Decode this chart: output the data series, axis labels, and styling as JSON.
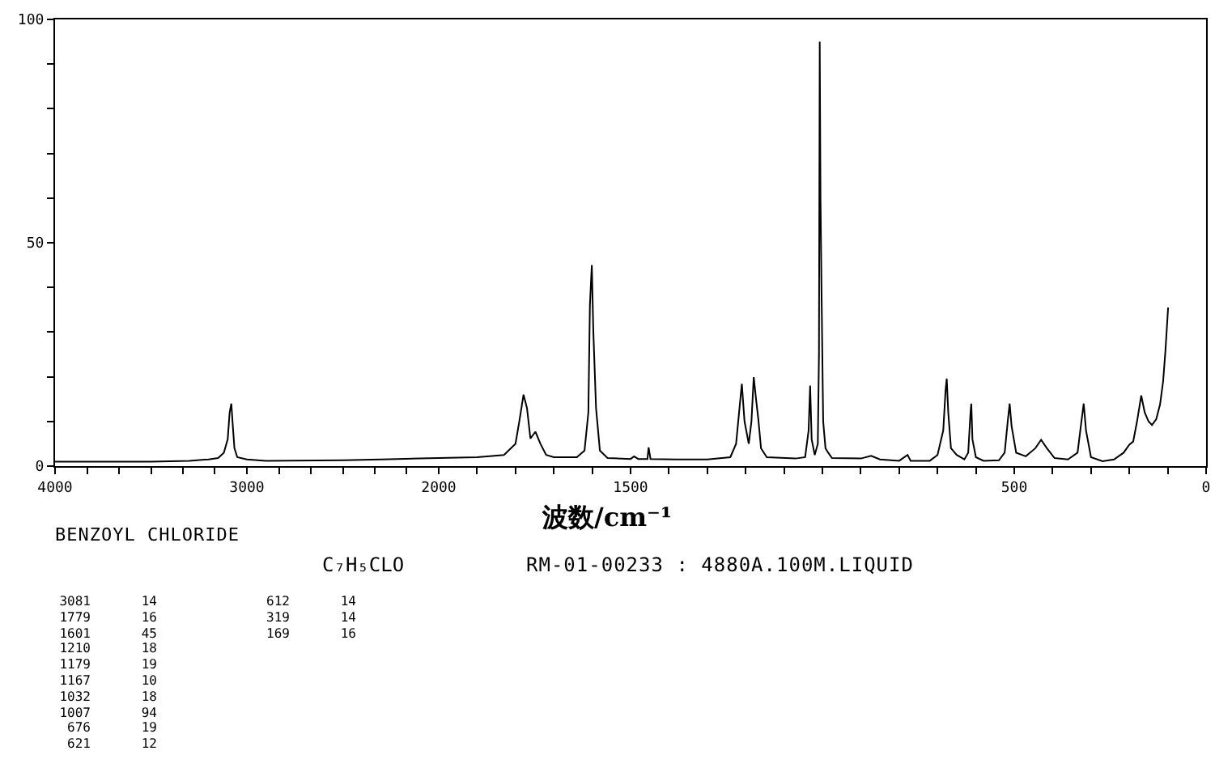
{
  "chart_data": [
    {
      "type": "line",
      "title": "BENZOYL CHLORIDE",
      "annotations": [
        "C₇H₅CLO",
        "RM-01-00233 : 4880A.100M.LIQUID",
        "3081",
        "14",
        "1779",
        "16",
        "1601",
        "45",
        "1210",
        "18",
        "1179",
        "19",
        "1167",
        "10",
        "1032",
        "18",
        "1007",
        "94",
        "676",
        "19",
        "621",
        "12",
        "612",
        "14",
        "319",
        "14",
        "169",
        "16"
      ],
      "x": [
        4000,
        3500,
        3300,
        3200,
        3150,
        3120,
        3100,
        3090,
        3081,
        3075,
        3065,
        3050,
        3000,
        2900,
        2500,
        2300,
        2100,
        2000
      ],
      "series": [
        {
          "color": "#000000",
          "values": [
            1.0,
            1.0,
            1.2,
            1.5,
            1.8,
            3,
            6,
            12,
            14,
            10,
            4,
            2,
            1.5,
            1.2,
            1.3,
            1.5,
            1.7,
            1.8
          ]
        }
      ],
      "xlim": [
        4000,
        2000
      ],
      "xticks": [
        4000,
        {
          "value": 3833,
          "label": null
        },
        {
          "value": 3667,
          "label": null
        },
        {
          "value": 3500,
          "label": null
        },
        {
          "value": 3333,
          "label": null
        },
        {
          "value": 3167,
          "label": null
        },
        3000,
        {
          "value": 2833,
          "label": null
        },
        {
          "value": 2667,
          "label": null
        },
        {
          "value": 2500,
          "label": null
        },
        {
          "value": 2333,
          "label": null
        },
        {
          "value": 2167,
          "label": null
        },
        2000
      ],
      "ylim": [
        0,
        100
      ],
      "yticks": [
        0,
        {
          "value": 10,
          "label": null
        },
        {
          "value": 20,
          "label": null
        },
        {
          "value": 30,
          "label": null
        },
        {
          "value": 40,
          "label": null
        },
        50,
        {
          "value": 60,
          "label": null
        },
        {
          "value": 70,
          "label": null
        },
        {
          "value": 80,
          "label": null
        },
        {
          "value": 90,
          "label": null
        },
        100
      ]
    },
    {
      "type": "line",
      "xlabel": "波数/cm⁻¹",
      "x": [
        2000,
        1900,
        1830,
        1800,
        1790,
        1779,
        1770,
        1761,
        1748,
        1735,
        1720,
        1700,
        1640,
        1620,
        1610,
        1606,
        1601,
        1597,
        1590,
        1580,
        1560,
        1500,
        1491,
        1480,
        1456,
        1453,
        1448,
        1380,
        1300,
        1240,
        1225,
        1215,
        1210,
        1203,
        1192,
        1185,
        1179,
        1173,
        1167,
        1160,
        1145,
        1070,
        1045,
        1036,
        1032,
        1028,
        1020,
        1012,
        1009,
        1007,
        1005,
        1002,
        998,
        992,
        985,
        975,
        900,
        873,
        850,
        800,
        778,
        770,
        720,
        700,
        685,
        679,
        676,
        672,
        665,
        650,
        630,
        620,
        614,
        612,
        609,
        600,
        580,
        540,
        525,
        517,
        512,
        507,
        495,
        470,
        445,
        430,
        415,
        395,
        360,
        335,
        325,
        319,
        313,
        300,
        270,
        240,
        215,
        200,
        190,
        180,
        169,
        160,
        150,
        141,
        130,
        120,
        112,
        106,
        99
      ],
      "series": [
        {
          "color": "#000000",
          "values": [
            1.8,
            2,
            2.5,
            5,
            10,
            16,
            13,
            6.2,
            7.7,
            5,
            2.5,
            2,
            2,
            3.5,
            12,
            36,
            45,
            30,
            13,
            3.5,
            1.8,
            1.6,
            2.2,
            1.6,
            1.6,
            4.2,
            1.6,
            1.5,
            1.5,
            2,
            5,
            14,
            18.4,
            10,
            5,
            10,
            19.9,
            15,
            10.5,
            4,
            2,
            1.7,
            2,
            8,
            18,
            6,
            2.5,
            5,
            25,
            95,
            60,
            37,
            10,
            4,
            3,
            1.8,
            1.7,
            2.3,
            1.5,
            1.2,
            2.5,
            1.2,
            1.2,
            2.5,
            8,
            17,
            19.6,
            12,
            4,
            2.5,
            1.5,
            3,
            12,
            14,
            6,
            2,
            1.2,
            1.3,
            3,
            10,
            14,
            9,
            3,
            2.2,
            4,
            5.9,
            4,
            1.8,
            1.5,
            3,
            10,
            14,
            8,
            2,
            1.1,
            1.5,
            3,
            4.8,
            5.5,
            10,
            15.8,
            12,
            10,
            9.2,
            10.5,
            13.8,
            19,
            25.8,
            35.5
          ]
        }
      ],
      "xlim": [
        2000,
        0
      ],
      "xticks": [
        {
          "value": 2000,
          "label": null
        },
        {
          "value": 1900,
          "label": null
        },
        {
          "value": 1800,
          "label": null
        },
        {
          "value": 1700,
          "label": null
        },
        {
          "value": 1600,
          "label": null
        },
        1500,
        {
          "value": 1400,
          "label": null
        },
        {
          "value": 1300,
          "label": null
        },
        {
          "value": 1200,
          "label": null
        },
        {
          "value": 1100,
          "label": null
        },
        {
          "value": 1000,
          "label": null
        },
        {
          "value": 900,
          "label": null
        },
        {
          "value": 800,
          "label": null
        },
        {
          "value": 700,
          "label": null
        },
        {
          "value": 600,
          "label": null
        },
        500,
        {
          "value": 400,
          "label": null
        },
        {
          "value": 300,
          "label": null
        },
        {
          "value": 200,
          "label": null
        },
        {
          "value": 100,
          "label": null
        },
        0
      ],
      "ylim": [
        0,
        100
      ],
      "tick_labels": "x"
    }
  ]
}
